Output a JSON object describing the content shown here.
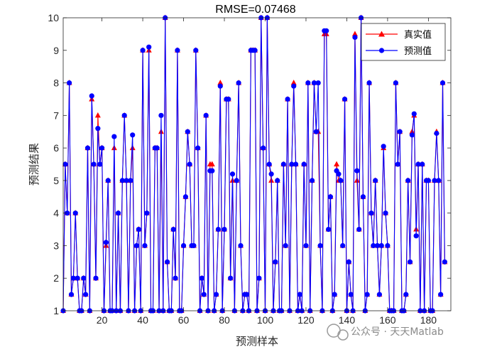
{
  "chart_data": {
    "type": "line",
    "title": "RMSE=0.07468",
    "xlabel": "预测样本",
    "ylabel": "预测结果",
    "xlim": [
      1,
      191
    ],
    "ylim": [
      1,
      10
    ],
    "xticks": [
      20,
      40,
      60,
      80,
      100,
      120,
      140,
      160,
      180
    ],
    "yticks": [
      1,
      2,
      3,
      4,
      5,
      6,
      7,
      8,
      9,
      10
    ],
    "grid": false,
    "legend_position": "top-right",
    "series": [
      {
        "name": "真实值",
        "color": "#ff0000",
        "marker": "triangle",
        "values": [
          1,
          5.5,
          4,
          8,
          1.5,
          2,
          4,
          2,
          1,
          1,
          2,
          1.5,
          6,
          1,
          7.5,
          5.5,
          2,
          7,
          5.5,
          6,
          1,
          3,
          5,
          1,
          1,
          6,
          1,
          4,
          1,
          5,
          7,
          5,
          1,
          5,
          6,
          1,
          3,
          3.5,
          1,
          9,
          3,
          4,
          9,
          1,
          1,
          6,
          6,
          1,
          6.5,
          1,
          10,
          2.5,
          1,
          1,
          3.5,
          2,
          9,
          1,
          1,
          3,
          4.5,
          6.5,
          5.5,
          3,
          3,
          9,
          6,
          1,
          2,
          1.5,
          7,
          1,
          5.5,
          5.5,
          1,
          1.5,
          3.5,
          8,
          1,
          3.5,
          7.5,
          7.5,
          2,
          5,
          1,
          5,
          8,
          3,
          1,
          1.5,
          1.5,
          1,
          9,
          9,
          9,
          1,
          2,
          10,
          6,
          1,
          10,
          5.5,
          5,
          1,
          2.5,
          5,
          1,
          1,
          5.5,
          3,
          7.5,
          1,
          5.5,
          8,
          5.5,
          1,
          1.5,
          1,
          5.5,
          3,
          8,
          1,
          5,
          8,
          6.5,
          6.5,
          3,
          1,
          9.5,
          9.5,
          3.5,
          4.5,
          1,
          1.5,
          5.5,
          5,
          5,
          3,
          7.5,
          1,
          2.5,
          1.5,
          1,
          9.5,
          5,
          3.5,
          10,
          4.5,
          1,
          1.5,
          8,
          4,
          3,
          5,
          3,
          1.5,
          3,
          6,
          4,
          3,
          1,
          1,
          1,
          8,
          5.5,
          6.5,
          1,
          1,
          1.5,
          5,
          2.5,
          6.5,
          7,
          3.5,
          5.5,
          1,
          5.5,
          1,
          5,
          5,
          1,
          1,
          5,
          6.5,
          5,
          1.5,
          8,
          2.5
        ],
        "y_approx_note": ""
      },
      {
        "name": "预测值",
        "color": "#0000ff",
        "marker": "circle",
        "values": [
          1,
          5.5,
          4,
          8,
          1.5,
          2,
          4,
          2,
          1,
          1,
          2,
          1.5,
          6,
          1,
          7.6,
          5.5,
          2,
          6.6,
          5.5,
          6,
          1,
          3.1,
          5,
          1,
          1,
          6.35,
          1,
          4,
          1,
          5,
          7,
          5,
          1,
          5,
          6.4,
          1,
          3,
          3.5,
          1,
          9,
          3,
          4,
          9.1,
          1,
          1,
          6,
          6,
          1,
          7,
          1,
          10,
          2.5,
          1,
          1,
          3.5,
          2,
          9,
          1,
          1,
          3,
          4.5,
          6.5,
          5.5,
          3,
          3,
          9,
          6,
          1,
          2,
          1.5,
          7,
          1,
          5.3,
          5.3,
          1,
          1.5,
          3.5,
          7.9,
          1,
          3.5,
          7.5,
          7.5,
          2,
          5.2,
          1,
          5,
          8,
          3,
          1,
          1.5,
          1.5,
          1,
          9,
          9,
          9,
          1,
          2,
          10,
          6,
          1,
          10,
          5.5,
          5.2,
          1,
          2.5,
          5,
          1,
          1,
          5.5,
          3,
          7.5,
          1,
          5.5,
          7.9,
          5.5,
          1,
          1.5,
          1,
          5.5,
          3,
          8,
          1,
          5,
          8,
          6.5,
          8,
          3,
          1,
          9.6,
          9.6,
          3.5,
          4.5,
          1,
          1.5,
          5.3,
          5.2,
          5,
          3,
          7.5,
          1,
          2.5,
          1.5,
          1,
          9.4,
          5.3,
          3.5,
          10,
          4.5,
          1,
          1.5,
          8,
          4,
          3,
          5,
          3,
          1.5,
          3,
          6.05,
          4,
          3,
          1,
          1,
          1,
          8,
          5.5,
          6.5,
          1,
          1,
          1.5,
          5,
          2.5,
          6.4,
          7.05,
          3.3,
          5.5,
          1,
          5.5,
          1,
          5,
          5,
          1,
          1,
          5,
          6.45,
          5,
          1.5,
          8,
          2.5
        ]
      }
    ]
  },
  "watermark": {
    "text": "公众号 · 天天Matlab"
  }
}
